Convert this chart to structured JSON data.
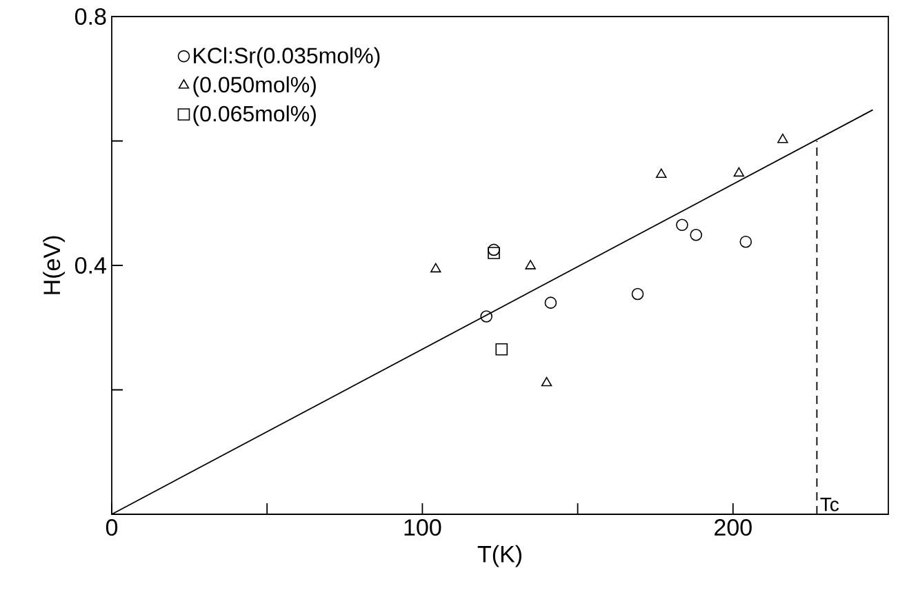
{
  "chart_data": {
    "type": "scatter",
    "xlabel": "T(K)",
    "ylabel": "H(eV)",
    "xlim": [
      0,
      250
    ],
    "ylim": [
      0,
      0.8
    ],
    "xticks": [
      0,
      {
        "value": 50,
        "label": null
      },
      100,
      {
        "value": 150,
        "label": null
      },
      200
    ],
    "yticks": [
      {
        "value": 0.2,
        "label": null
      },
      0.4,
      {
        "value": 0.6,
        "label": null
      },
      0.8
    ],
    "legend": "top left",
    "grid": false,
    "series": [
      {
        "name": "KCl:Sr(0.035mol%)",
        "color": "#000000",
        "marker": "circle",
        "x": [
          120.6,
          123,
          141.3,
          169.3,
          183.6,
          188.1,
          204.1
        ],
        "values": [
          0.318,
          0.425,
          0.34,
          0.354,
          0.465,
          0.449,
          0.438
        ]
      },
      {
        "name": "(0.050mol%)",
        "color": "#000000",
        "marker": "triangle",
        "x": [
          104.3,
          134.8,
          140,
          176.9,
          201.9,
          216
        ],
        "values": [
          0.394,
          0.399,
          0.211,
          0.546,
          0.548,
          0.602
        ]
      },
      {
        "name": "(0.065mol%)",
        "color": "#000000",
        "marker": "square",
        "x": [
          123,
          125.5
        ],
        "values": [
          0.42,
          0.265
        ]
      },
      {
        "type": "line",
        "color": "#000000",
        "marker": "none",
        "line_style": "solid",
        "x": [
          0,
          245
        ],
        "values": [
          0,
          0.65
        ]
      }
    ],
    "ref_lines": [
      {
        "axis": "x",
        "value": 227,
        "label": "Tc",
        "line_style": "dashed",
        "color": "#000000"
      }
    ]
  }
}
